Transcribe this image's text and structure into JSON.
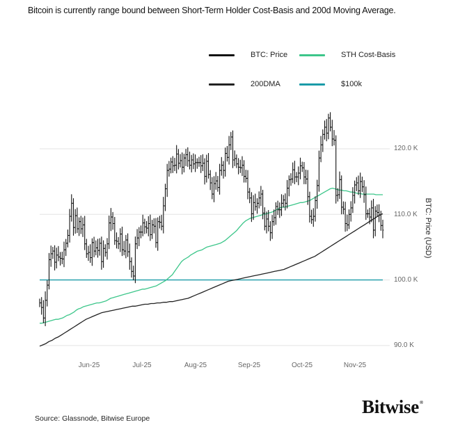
{
  "header": {
    "title": "Bitcoin is currently range bound between Short-Term Holder Cost-Basis and 200d Moving Average."
  },
  "legend": {
    "items": [
      {
        "label": "BTC: Price",
        "color": "#111111"
      },
      {
        "label": "STH Cost-Basis",
        "color": "#3cc68a"
      },
      {
        "label": "200DMA",
        "color": "#222222"
      },
      {
        "label": "$100k",
        "color": "#1a9ba8"
      }
    ]
  },
  "axes": {
    "y_title": "BTC: Price (USD)",
    "y_ticks": [
      "120.0 K",
      "110.0 K",
      "100.0 K",
      "90.0 K"
    ],
    "x_ticks": [
      "Jun-25",
      "Jul-25",
      "Aug-25",
      "Sep-25",
      "Oct-25",
      "Nov-25"
    ]
  },
  "footer": {
    "source": "Source: Glassnode, Bitwise Europe",
    "brand": "Bitwise",
    "brand_mark": "®"
  },
  "colors": {
    "price": "#111111",
    "sth": "#3cc68a",
    "dma": "#222222",
    "threshold": "#1a9ba8",
    "grid": "#e3e3e3"
  },
  "chart_data": {
    "type": "line",
    "title": "Bitcoin is currently range bound between Short-Term Holder Cost-Basis and 200d Moving Average.",
    "xlabel": "",
    "ylabel": "BTC: Price (USD)",
    "ylim": [
      89000,
      127500
    ],
    "y_ticks": [
      90000,
      100000,
      110000,
      120000
    ],
    "x_ticks": [
      "Jun-25",
      "Jul-25",
      "Aug-25",
      "Sep-25",
      "Oct-25",
      "Nov-25"
    ],
    "x_start": "2025-05-04",
    "x_end": "2025-11-04",
    "grid": true,
    "legend_position": "top-right",
    "series": [
      {
        "name": "BTC: Price",
        "x_step_days": 1,
        "values": [
          96.5,
          95.8,
          94.2,
          96.9,
          99.2,
          103.1,
          104.0,
          104.4,
          102.7,
          103.8,
          103.5,
          103.3,
          103.2,
          104.6,
          105.6,
          106.8,
          109.7,
          111.7,
          108.0,
          109.8,
          107.8,
          108.9,
          107.8,
          108.4,
          105.5,
          104.0,
          104.2,
          103.4,
          105.7,
          104.4,
          104.9,
          104.5,
          105.6,
          102.8,
          104.8,
          104.2,
          105.5,
          108.7,
          109.6,
          108.6,
          106.0,
          105.9,
          105.5,
          107.0,
          104.6,
          104.4,
          106.1,
          104.3,
          102.8,
          101.3,
          100.6,
          105.5,
          106.4,
          107.3,
          107.3,
          108.7,
          108.1,
          107.9,
          108.6,
          106.9,
          108.4,
          108.2,
          105.7,
          108.9,
          108.8,
          108.2,
          111.3,
          113.9,
          116.7,
          116.9,
          118.0,
          117.4,
          117.5,
          119.2,
          117.8,
          118.2,
          117.2,
          118.6,
          119.1,
          118.2,
          117.5,
          118.3,
          117.7,
          117.9,
          117.9,
          117.9,
          117.4,
          117.8,
          115.8,
          118.1,
          116.1,
          114.8,
          113.1,
          114.7,
          115.1,
          114.1,
          116.7,
          117.5,
          116.7,
          119.3,
          118.7,
          120.6,
          121.8,
          118.3,
          118.5,
          117.7,
          117.2,
          117.1,
          117.5,
          115.8,
          115.5,
          113.4,
          112.5,
          110.1,
          111.8,
          111.2,
          111.7,
          112.5,
          113.1,
          110.2,
          108.2,
          109.3,
          108.2,
          107.2,
          108.9,
          109.5,
          111.2,
          110.7,
          110.7,
          111.7,
          112.2,
          111.7,
          114.0,
          115.3,
          115.4,
          116.8,
          115.7,
          115.7,
          116.3,
          117.4,
          117.1,
          115.7,
          115.4,
          112.7,
          109.7,
          109.2,
          109.7,
          112.1,
          114.4,
          118.6,
          120.6,
          122.2,
          123.3,
          122.4,
          124.7,
          123.3,
          121.5,
          121.3,
          112.9,
          113.0,
          115.3,
          111.1,
          110.8,
          108.6,
          108.4,
          110.0,
          111.0,
          112.9,
          114.5,
          114.8,
          113.6,
          115.0,
          114.2,
          113.0,
          110.1,
          110.1,
          109.6,
          111.0,
          107.6,
          110.5,
          110.3,
          109.9,
          108.3,
          107.6
        ]
      },
      {
        "name": "STH Cost-Basis",
        "x_step_days": 1,
        "values": [
          93.4,
          93.4,
          93.5,
          93.6,
          93.7,
          93.8,
          93.9,
          94.0,
          94.0,
          94.1,
          94.2,
          94.4,
          94.6,
          94.7,
          94.9,
          95.1,
          95.4,
          95.6,
          95.7,
          95.9,
          96.0,
          96.1,
          96.2,
          96.3,
          96.4,
          96.5,
          96.5,
          96.6,
          96.7,
          96.8,
          97.0,
          97.2,
          97.3,
          97.4,
          97.5,
          97.6,
          97.7,
          97.8,
          97.9,
          98.0,
          98.1,
          98.2,
          98.3,
          98.4,
          98.5,
          98.6,
          98.6,
          98.7,
          98.8,
          98.9,
          99.0,
          99.1,
          99.3,
          99.5,
          99.7,
          99.9,
          100.2,
          100.5,
          100.8,
          101.3,
          101.8,
          102.3,
          102.8,
          103.1,
          103.3,
          103.5,
          103.8,
          104.0,
          104.2,
          104.4,
          104.5,
          104.6,
          104.8,
          105.0,
          105.1,
          105.2,
          105.3,
          105.4,
          105.5,
          105.6,
          105.8,
          106.0,
          106.3,
          106.6,
          106.9,
          107.2,
          107.5,
          107.9,
          108.3,
          108.7,
          109.0,
          109.2,
          109.4,
          109.5,
          109.6,
          109.7,
          109.8,
          109.9,
          110.0,
          110.1,
          110.2,
          110.3,
          110.4,
          110.6,
          110.8,
          111.0,
          111.1,
          111.1,
          111.2,
          111.3,
          111.4,
          111.5,
          111.6,
          111.7,
          111.8,
          111.8,
          111.9,
          112.0,
          112.1,
          112.3,
          112.5,
          112.7,
          112.9,
          113.1,
          113.3,
          113.5,
          113.7,
          113.9,
          114.0,
          113.9,
          113.8,
          113.7,
          113.7,
          113.6,
          113.6,
          113.5,
          113.4,
          113.4,
          113.3,
          113.2,
          113.2,
          113.1,
          113.1,
          113.1,
          113.1,
          113.1,
          113.1,
          113.0,
          113.0,
          113.0,
          113.0
        ]
      },
      {
        "name": "200DMA",
        "x_step_days": 1,
        "values": [
          89.9,
          90.1,
          90.3,
          90.6,
          90.8,
          91.1,
          91.3,
          91.6,
          91.9,
          92.2,
          92.5,
          92.8,
          93.1,
          93.4,
          93.7,
          94.0,
          94.2,
          94.4,
          94.6,
          94.8,
          95.0,
          95.1,
          95.2,
          95.3,
          95.4,
          95.5,
          95.6,
          95.7,
          95.8,
          95.9,
          96.0,
          96.0,
          96.1,
          96.2,
          96.3,
          96.3,
          96.4,
          96.4,
          96.5,
          96.5,
          96.6,
          96.6,
          96.7,
          96.7,
          96.8,
          96.9,
          97.0,
          97.1,
          97.2,
          97.4,
          97.6,
          97.8,
          98.0,
          98.2,
          98.4,
          98.6,
          98.8,
          99.0,
          99.2,
          99.4,
          99.6,
          99.8,
          99.9,
          100.0,
          100.1,
          100.2,
          100.3,
          100.4,
          100.5,
          100.6,
          100.7,
          100.8,
          100.9,
          101.0,
          101.1,
          101.2,
          101.3,
          101.4,
          101.5,
          101.6,
          101.8,
          102.0,
          102.2,
          102.4,
          102.6,
          102.8,
          103.0,
          103.2,
          103.4,
          103.6,
          103.9,
          104.2,
          104.5,
          104.8,
          105.1,
          105.4,
          105.7,
          106.0,
          106.3,
          106.6,
          106.9,
          107.2,
          107.5,
          107.8,
          108.1,
          108.4,
          108.7,
          109.0,
          109.3,
          109.6,
          109.9,
          110.1
        ]
      },
      {
        "name": "$100k",
        "values": [
          100000
        ],
        "type": "hline"
      }
    ]
  }
}
